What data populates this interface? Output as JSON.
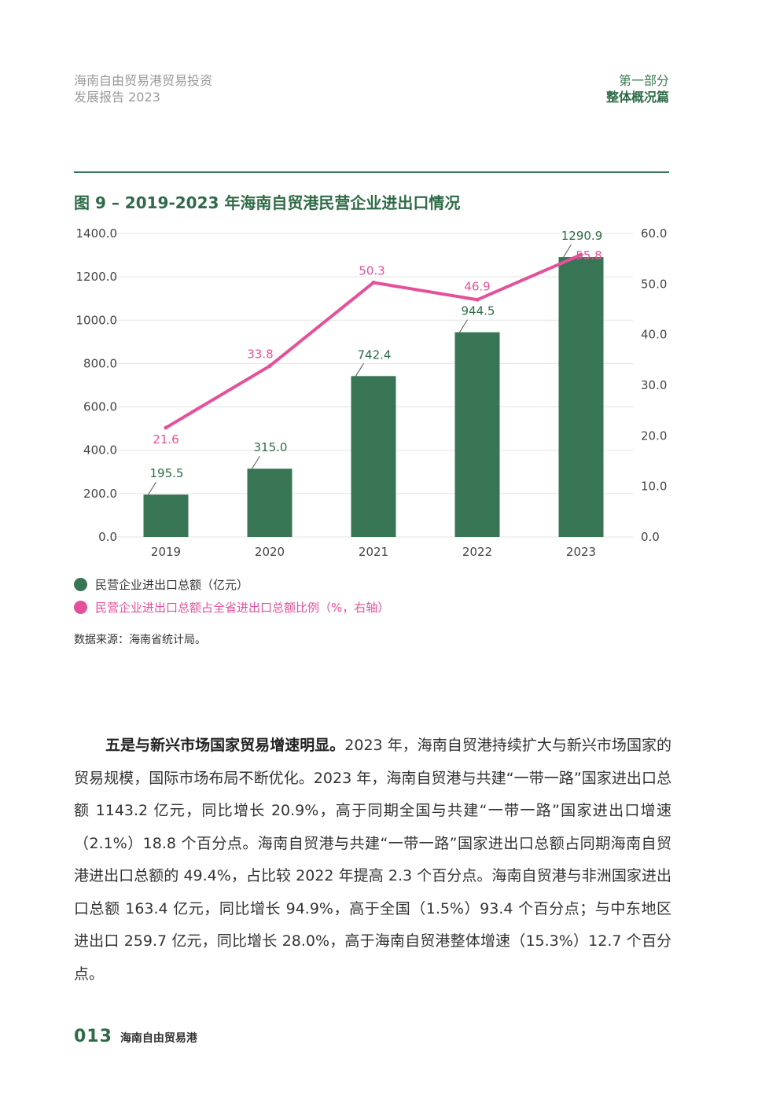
{
  "header": {
    "report_title_line1": "海南自由贸易港贸易投资",
    "report_title_line2": "发展报告 2023",
    "part_label": "第一部分",
    "section_label": "整体概况篇"
  },
  "figure": {
    "title": "图 9 – 2019-2023 年海南自贸港民营企业进出口情况",
    "source": "数据来源：海南省统计局。"
  },
  "chart_data": {
    "type": "bar+line",
    "categories": [
      "2019",
      "2020",
      "2021",
      "2022",
      "2023"
    ],
    "series": [
      {
        "name": "民营企业进出口总额（亿元）",
        "type": "bar",
        "axis": "left",
        "color": "#387554",
        "values": [
          195.5,
          315.0,
          742.4,
          944.5,
          1290.9
        ],
        "labels": [
          "195.5",
          "315.0",
          "742.4",
          "944.5",
          "1290.9"
        ]
      },
      {
        "name": "民营企业进出口总额占全省进出口总额比例（%，右轴）",
        "type": "line",
        "axis": "right",
        "color": "#e5509a",
        "values": [
          21.6,
          33.8,
          50.3,
          46.9,
          55.8
        ],
        "labels": [
          "21.6",
          "33.8",
          "50.3",
          "46.9",
          "55.8"
        ]
      }
    ],
    "y_left": {
      "min": 0,
      "max": 1400,
      "ticks": [
        "0.0",
        "200.0",
        "400.0",
        "600.0",
        "800.0",
        "1000.0",
        "1200.0",
        "1400.0"
      ]
    },
    "y_right": {
      "min": 0,
      "max": 60,
      "ticks": [
        "0.0",
        "10.0",
        "20.0",
        "30.0",
        "40.0",
        "50.0",
        "60.0"
      ]
    },
    "grid": true,
    "legend_position": "bottom-left"
  },
  "body": {
    "lead": "五是与新兴市场国家贸易增速明显。",
    "text": "2023 年，海南自贸港持续扩大与新兴市场国家的贸易规模，国际市场布局不断优化。2023 年，海南自贸港与共建“一带一路”国家进出口总额 1143.2 亿元，同比增长 20.9%，高于同期全国与共建“一带一路”国家进出口增速（2.1%）18.8 个百分点。海南自贸港与共建“一带一路”国家进出口总额占同期海南自贸港进出口总额的 49.4%，占比较 2022 年提高 2.3 个百分点。海南自贸港与非洲国家进出口总额 163.4 亿元，同比增长 94.9%，高于全国（1.5%）93.4 个百分点；与中东地区进出口 259.7 亿元，同比增长 28.0%，高于海南自贸港整体增速（15.3%）12.7 个百分点。"
  },
  "footer": {
    "page_number": "013",
    "label": "海南自由贸易港"
  }
}
